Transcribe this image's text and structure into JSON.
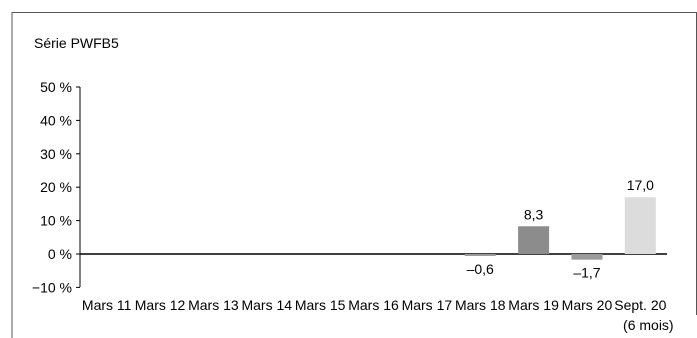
{
  "chart_data": {
    "type": "bar",
    "title": "Série PWFB5",
    "xlabel": "",
    "ylabel": "",
    "ylim": [
      -10,
      50
    ],
    "yticks": [
      -10,
      0,
      10,
      20,
      30,
      40,
      50
    ],
    "ytick_labels": [
      "−10 %",
      "0 %",
      "10 %",
      "20 %",
      "30 %",
      "40 %",
      "50 %"
    ],
    "categories": [
      "Mars 11",
      "Mars 12",
      "Mars 13",
      "Mars 14",
      "Mars 15",
      "Mars 16",
      "Mars 17",
      "Mars 18",
      "Mars 19",
      "Mars 20",
      "Sept. 20"
    ],
    "category_sublabels": [
      "",
      "",
      "",
      "",
      "",
      "",
      "",
      "",
      "",
      "",
      "(6 mois)"
    ],
    "values": [
      null,
      null,
      null,
      null,
      null,
      null,
      null,
      -0.6,
      8.3,
      -1.7,
      17.0
    ],
    "value_labels": [
      "",
      "",
      "",
      "",
      "",
      "",
      "",
      "–0,6",
      "8,3",
      "–1,7",
      "17,0"
    ],
    "bar_colors": [
      "#8c8c8c",
      "#8c8c8c",
      "#8c8c8c",
      "#8c8c8c",
      "#8c8c8c",
      "#8c8c8c",
      "#8c8c8c",
      "#9a9a9a",
      "#8c8c8c",
      "#9a9a9a",
      "#dcdcdc"
    ],
    "grid": false,
    "legend": "none"
  },
  "colors": {
    "axis": "#000000",
    "frame": "#555555",
    "text": "#000000"
  }
}
